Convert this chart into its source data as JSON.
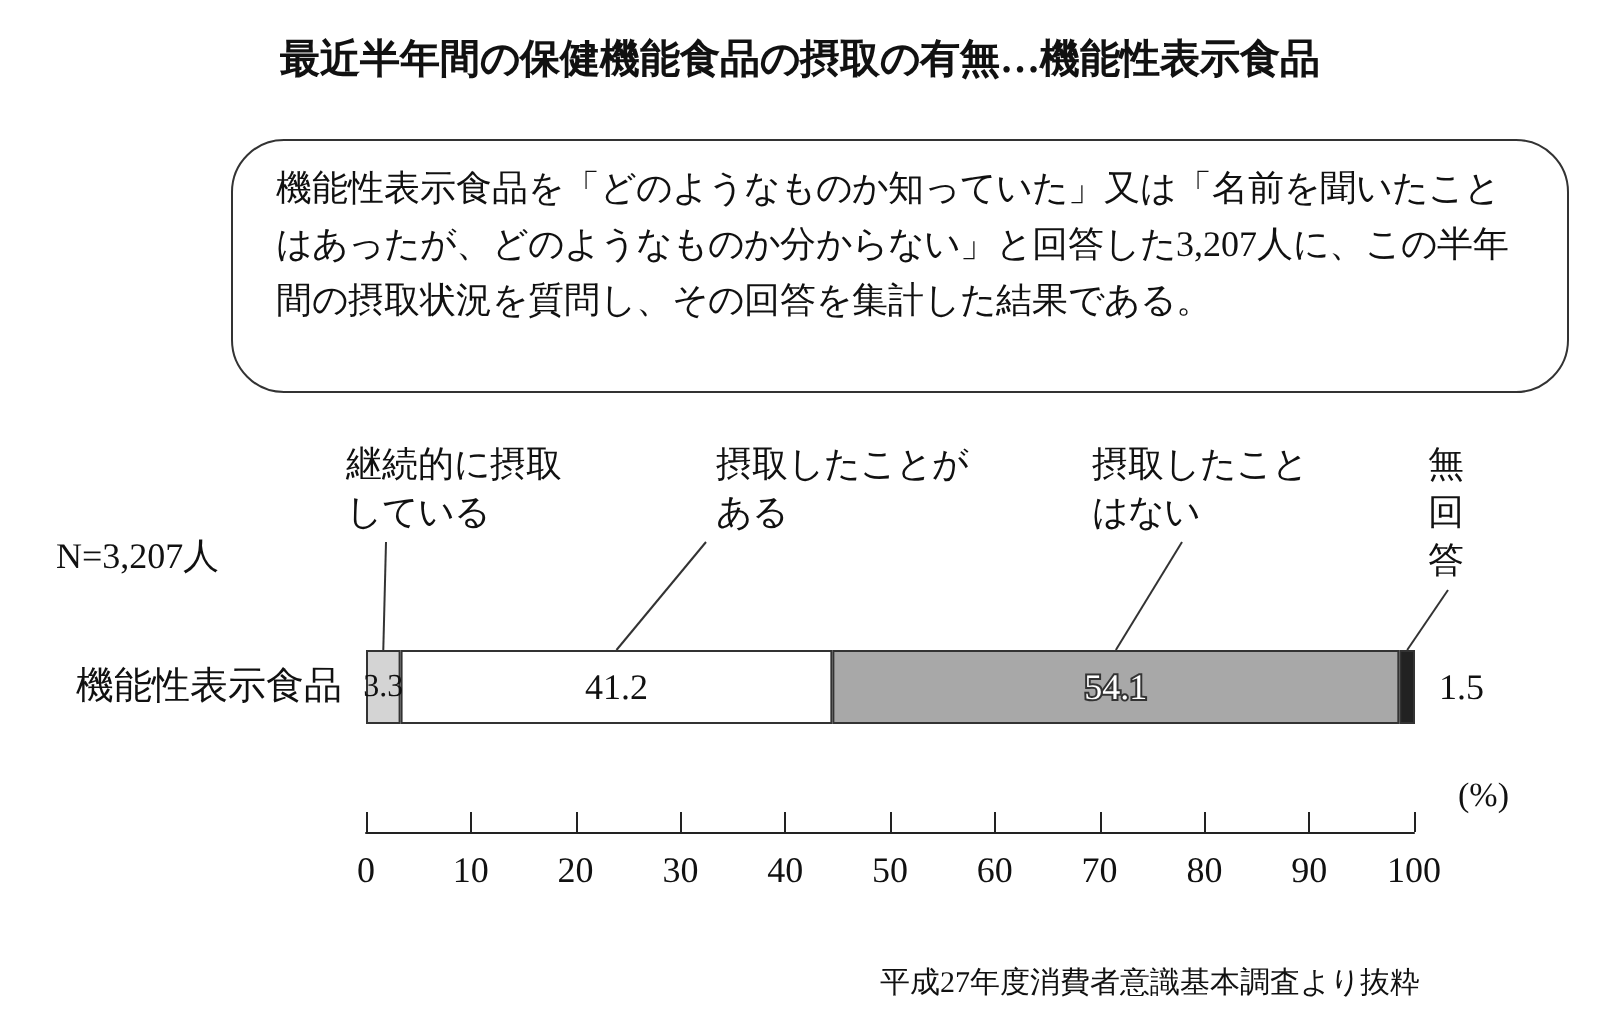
{
  "chart_data": {
    "type": "bar",
    "orientation": "horizontal",
    "stacked": true,
    "title": "最近半年間の保健機能食品の摂取の有無…機能性表示食品",
    "categories": [
      "機能性表示食品"
    ],
    "series": [
      {
        "name": "継続的に摂取している",
        "color": "#d4d4d4",
        "values": [
          3.3
        ]
      },
      {
        "name": "摂取したことがある",
        "color": "#ffffff",
        "values": [
          41.2
        ]
      },
      {
        "name": "摂取したことはない",
        "color": "#a8a8a8",
        "values": [
          54.1
        ]
      },
      {
        "name": "無回答",
        "color": "#222222",
        "values": [
          1.5
        ]
      }
    ],
    "xlim": [
      0,
      100
    ],
    "xticks": [
      0,
      10,
      20,
      30,
      40,
      50,
      60,
      70,
      80,
      90,
      100
    ],
    "xlabel": "(%)",
    "data_labels": true,
    "legend": false,
    "grid": false,
    "annotations": [
      "機能性表示食品を「どのようなものか知っていた」又は「名前を聞いたことはあったが、どのようなものか分からない」と回答した3,207人に、この半年間の摂取状況を質問し、その回答を集計した結果である。",
      "N=3,207人",
      "平成27年度消費者意識基本調査より抜粋"
    ]
  }
}
